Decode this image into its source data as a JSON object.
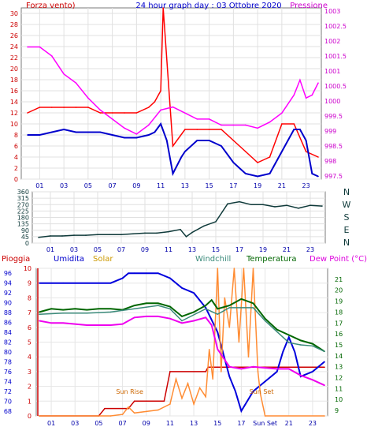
{
  "chart_data": [
    {
      "type": "line",
      "title": "24 hour graph day : 03 Ottobre 2020",
      "left_axis_label": "Forza vento)",
      "right_axis_label": "Pressione",
      "x_ticks": [
        "01",
        "03",
        "05",
        "07",
        "09",
        "11",
        "13",
        "15",
        "17",
        "19",
        "21",
        "23"
      ],
      "y_left_ticks": [
        "0",
        "2",
        "4",
        "6",
        "8",
        "10",
        "12",
        "14",
        "16",
        "18",
        "20",
        "22",
        "24",
        "26",
        "28",
        "30"
      ],
      "y_left_range": [
        0,
        31
      ],
      "y_right_ticks": [
        "997.5",
        "998",
        "998.5",
        "999",
        "999.5",
        "1000",
        "1000.5",
        "1001",
        "1001.5",
        "1002",
        "1002.5",
        "1003"
      ],
      "y_right_range": [
        997.4,
        1003.1
      ],
      "grid": true,
      "series": [
        {
          "color": "#ff0000",
          "axis": "left",
          "x": [
            0,
            1,
            2,
            3,
            4,
            5,
            6,
            7,
            8,
            9,
            10,
            10.5,
            11,
            11.2,
            12,
            13,
            14,
            15,
            16,
            17,
            18,
            19,
            20,
            21,
            22,
            23,
            24
          ],
          "y": [
            12,
            13,
            13,
            13,
            13,
            13,
            12,
            12,
            12,
            12,
            13,
            14,
            16,
            31,
            6,
            9,
            9,
            9,
            9,
            7,
            5,
            3,
            4,
            10,
            10,
            5,
            4
          ]
        },
        {
          "color": "#0000cc",
          "axis": "left",
          "x": [
            0,
            1,
            2,
            3,
            4,
            5,
            6,
            7,
            8,
            9,
            10,
            10.5,
            11,
            11.5,
            12,
            12.7,
            13,
            14,
            15,
            16,
            17,
            17.5,
            18,
            19,
            20,
            20.5,
            21,
            21.5,
            22,
            22.5,
            23,
            23.5,
            24
          ],
          "y": [
            8,
            8,
            8.5,
            9,
            8.5,
            8.5,
            8.5,
            8,
            7.5,
            7.5,
            8,
            8.5,
            10,
            7,
            1,
            4,
            5,
            7,
            7,
            6,
            3,
            2,
            1,
            0.5,
            1,
            3,
            5,
            7,
            9,
            9,
            7,
            1,
            0.5
          ]
        },
        {
          "color": "#ff00ff",
          "axis": "right",
          "x": [
            0,
            1,
            2,
            3,
            4,
            5,
            6,
            7,
            8,
            9,
            10,
            11,
            12,
            13,
            14,
            15,
            16,
            17,
            18,
            19,
            20,
            21,
            22,
            22.5,
            23,
            23.5,
            24
          ],
          "y": [
            1001.8,
            1001.8,
            1001.5,
            1000.9,
            1000.6,
            1000.1,
            999.7,
            999.4,
            999.1,
            998.9,
            999.2,
            999.7,
            999.8,
            999.6,
            999.4,
            999.4,
            999.2,
            999.2,
            999.2,
            999.1,
            999.3,
            999.6,
            1000.2,
            1000.7,
            1000.1,
            1000.2,
            1000.6
          ]
        }
      ]
    },
    {
      "type": "line",
      "title": "",
      "x_ticks": [
        "01",
        "03",
        "05",
        "07",
        "09",
        "11",
        "13",
        "15",
        "17",
        "19",
        "21",
        "23"
      ],
      "y_left_ticks": [
        "0",
        "45",
        "90",
        "135",
        "180",
        "225",
        "270",
        "315",
        "360"
      ],
      "y_left_range": [
        0,
        360
      ],
      "cardinal_labels": [
        "N",
        "W",
        "S",
        "E",
        "N"
      ],
      "grid": true,
      "series": [
        {
          "color": "#0f3a3a",
          "axis": "left",
          "x": [
            0,
            1,
            2,
            3,
            4,
            5,
            6,
            7,
            8,
            9,
            10,
            11,
            12,
            12.5,
            13,
            14,
            15,
            16,
            17,
            18,
            19,
            20,
            21,
            22,
            23,
            24
          ],
          "y": [
            40,
            50,
            50,
            55,
            55,
            60,
            60,
            60,
            65,
            70,
            70,
            80,
            95,
            45,
            75,
            120,
            150,
            275,
            290,
            270,
            270,
            255,
            265,
            245,
            265,
            260
          ]
        }
      ]
    },
    {
      "type": "line",
      "title": "",
      "labels": [
        "Pioggia",
        "Umidita",
        "Solar",
        "Windchill",
        "Temperatura",
        "Dew Point (°C)"
      ],
      "x_ticks": [
        "01",
        "03",
        "05",
        "07",
        "09",
        "11",
        "13",
        "15",
        "17",
        "Sun Set",
        "21",
        "23"
      ],
      "y_left_ticks": [
        "0",
        "1",
        "2",
        "3",
        "4",
        "5",
        "6",
        "7",
        "8",
        "9",
        "10"
      ],
      "y_left_range": [
        0,
        10
      ],
      "y_umid_ticks": [
        "68",
        "70",
        "72",
        "74",
        "76",
        "78",
        "80",
        "82",
        "84",
        "86",
        "88",
        "90",
        "92",
        "94",
        "96"
      ],
      "y_umid_range": [
        67,
        97
      ],
      "y_right_ticks": [
        "9",
        "10",
        "11",
        "12",
        "13",
        "14",
        "15",
        "16",
        "17",
        "18",
        "19",
        "20",
        "21"
      ],
      "y_right_range": [
        8.5,
        22
      ],
      "annotations": [
        "Sun Rise",
        "Sun Set"
      ],
      "grid": true,
      "series": [
        {
          "color": "#cc0000",
          "axis": "rain",
          "x": [
            0,
            5,
            5.5,
            7.5,
            8,
            10.5,
            11,
            14,
            14.2,
            24
          ],
          "y": [
            0,
            0,
            0.5,
            0.5,
            1,
            1,
            3,
            3,
            3.3,
            3.3
          ]
        },
        {
          "color": "#0000dd",
          "axis": "umid",
          "x": [
            0,
            1,
            2,
            3,
            4,
            5,
            6,
            7,
            7.5,
            8,
            9,
            10,
            11,
            12,
            13,
            14,
            15,
            16,
            16.5,
            17,
            18,
            19,
            20,
            20.5,
            21,
            21.5,
            22,
            23,
            24
          ],
          "y": [
            94,
            94,
            94,
            94,
            94,
            94,
            94,
            95,
            96,
            96,
            96,
            96,
            95,
            93,
            92,
            89,
            84,
            75,
            72,
            68,
            72,
            74,
            76,
            80,
            83,
            80,
            75,
            76,
            78
          ]
        },
        {
          "color": "#006600",
          "axis": "right",
          "x": [
            0,
            1,
            2,
            3,
            4,
            5,
            6,
            7,
            8,
            9,
            10,
            11,
            12,
            13,
            14,
            14.5,
            15,
            16,
            17,
            18,
            19,
            20,
            21,
            22,
            23,
            24
          ],
          "y": [
            18,
            18.3,
            18.2,
            18.3,
            18.2,
            18.3,
            18.3,
            18.2,
            18.6,
            18.8,
            18.8,
            18.5,
            17.6,
            18.0,
            18.6,
            19.1,
            18.3,
            18.6,
            19.2,
            18.8,
            17.4,
            16.4,
            15.9,
            15.4,
            15.1,
            14.4
          ]
        },
        {
          "color": "#3a8a7a",
          "axis": "right",
          "x": [
            0,
            2,
            4,
            6,
            8,
            10,
            11,
            12,
            14,
            15,
            16,
            18,
            19,
            20,
            21,
            22,
            23,
            24
          ],
          "y": [
            17.8,
            17.9,
            17.9,
            18.0,
            18.3,
            18.6,
            18.3,
            17.2,
            18.3,
            17.8,
            18.4,
            18.4,
            17.2,
            16.2,
            15.2,
            15.0,
            14.9,
            14.4
          ]
        },
        {
          "color": "#ee00ee",
          "axis": "right",
          "x": [
            0,
            1,
            2,
            3,
            4,
            5,
            6,
            7,
            8,
            9,
            10,
            11,
            12,
            13,
            14,
            14.5,
            15,
            16,
            17,
            18,
            19,
            20,
            21,
            22,
            23,
            24
          ],
          "y": [
            17.2,
            17.0,
            17.0,
            16.9,
            16.8,
            16.8,
            16.8,
            16.9,
            17.5,
            17.6,
            17.6,
            17.4,
            17.0,
            17.2,
            17.5,
            16.8,
            14.6,
            13.0,
            12.8,
            13.0,
            12.9,
            12.8,
            12.8,
            12.2,
            11.8,
            11.3
          ]
        },
        {
          "color": "#ff8c33",
          "axis": "solar",
          "x": [
            0,
            6,
            7,
            7.5,
            8,
            9,
            10,
            11,
            11.5,
            12,
            12.5,
            13,
            13.5,
            14,
            14.3,
            14.6,
            15,
            15.3,
            15.6,
            16,
            16.4,
            16.8,
            17.2,
            17.6,
            18,
            18.4,
            18.6,
            19,
            24
          ],
          "y": [
            0,
            0,
            0.1,
            0.6,
            0.2,
            0.3,
            0.4,
            0.8,
            2.5,
            1.2,
            2.2,
            0.8,
            1.9,
            1.3,
            4.5,
            2.5,
            10,
            3,
            8,
            6,
            10,
            5,
            10,
            4,
            10,
            3,
            1.5,
            0,
            0
          ]
        }
      ]
    }
  ]
}
